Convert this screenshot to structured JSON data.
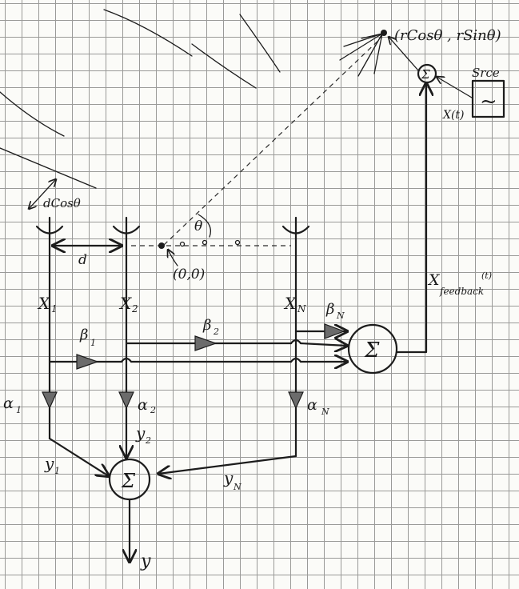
{
  "labels": {
    "source_point": "(rCosθ , rSinθ)",
    "source_box": "Srce",
    "sum_symbol": "Σ",
    "x_t": "X(t)",
    "d_cos_theta": "dCosθ",
    "d": "d",
    "theta": "θ",
    "origin": "(0,0)",
    "x1": "X",
    "x1_sub": "1",
    "x2": "X",
    "x2_sub": "2",
    "xn": "X",
    "xn_sub": "N",
    "beta1": "β",
    "beta1_sub": "1",
    "beta2": "β",
    "beta2_sub": "2",
    "betan": "β",
    "betan_sub": "N",
    "x_feedback": "X",
    "x_feedback_sub": "feedback",
    "x_feedback_sup": "(t)",
    "alpha1": "α",
    "alpha1_sub": "1",
    "alpha2": "α",
    "alpha2_sub": "2",
    "alphan": "α",
    "alphan_sub": "N",
    "y1": "y",
    "y1_sub": "1",
    "y2": "y",
    "y2_sub": "2",
    "yn": "y",
    "yn_sub": "N",
    "y": "y",
    "sine_glyph": "~"
  }
}
